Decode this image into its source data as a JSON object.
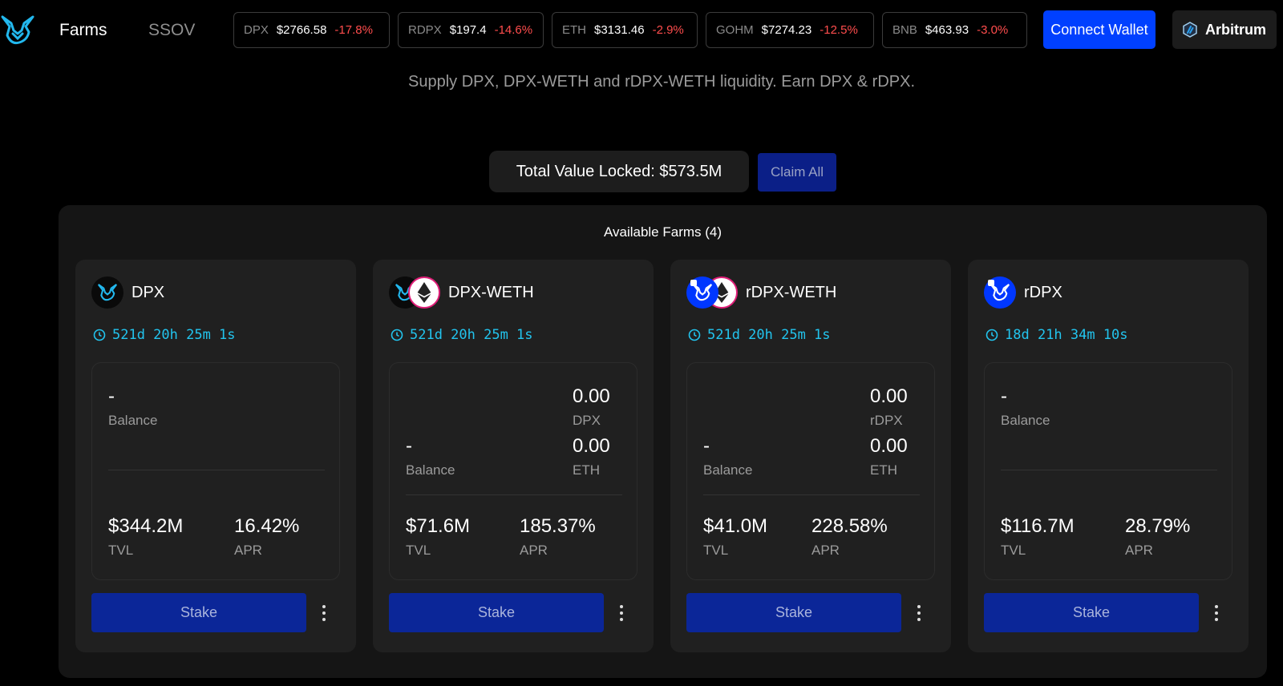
{
  "nav": {
    "farms": "Farms",
    "ssov": "SSOV"
  },
  "tickers": [
    {
      "symbol": "DPX",
      "price": "$2766.58",
      "change": "-17.8%"
    },
    {
      "symbol": "RDPX",
      "price": "$197.4",
      "change": "-14.6%"
    },
    {
      "symbol": "ETH",
      "price": "$3131.46",
      "change": "-2.9%"
    },
    {
      "symbol": "GOHM",
      "price": "$7274.23",
      "change": "-12.5%"
    },
    {
      "symbol": "BNB",
      "price": "$463.93",
      "change": "-3.0%"
    }
  ],
  "header": {
    "connect_label": "Connect Wallet",
    "network_label": "Arbitrum"
  },
  "subtitle": "Supply DPX, DPX-WETH and rDPX-WETH liquidity. Earn DPX & rDPX.",
  "tvl": {
    "label": "Total Value Locked: $573.5M",
    "claim_label": "Claim All"
  },
  "panel": {
    "title": "Available Farms (4)"
  },
  "farms": [
    {
      "name": "DPX",
      "icons": [
        "dpx"
      ],
      "timer": "521d 20h 25m 1s",
      "balance": "-",
      "balance_label": "Balance",
      "tvl": "$344.2M",
      "tvl_label": "TVL",
      "apr": "16.42%",
      "apr_label": "APR",
      "stake_label": "Stake"
    },
    {
      "name": "DPX-WETH",
      "icons": [
        "dpx",
        "eth"
      ],
      "timer": "521d 20h 25m 1s",
      "balance": "-",
      "balance_label": "Balance",
      "token1_amount": "0.00",
      "token1": "DPX",
      "token2_amount": "0.00",
      "token2": "ETH",
      "tvl": "$71.6M",
      "tvl_label": "TVL",
      "apr": "185.37%",
      "apr_label": "APR",
      "stake_label": "Stake"
    },
    {
      "name": "rDPX-WETH",
      "icons": [
        "rdpx",
        "eth"
      ],
      "timer": "521d 20h 25m 1s",
      "balance": "-",
      "balance_label": "Balance",
      "token1_amount": "0.00",
      "token1": "rDPX",
      "token2_amount": "0.00",
      "token2": "ETH",
      "tvl": "$41.0M",
      "tvl_label": "TVL",
      "apr": "228.58%",
      "apr_label": "APR",
      "stake_label": "Stake"
    },
    {
      "name": "rDPX",
      "icons": [
        "rdpx"
      ],
      "timer": "18d 21h 34m 10s",
      "balance": "-",
      "balance_label": "Balance",
      "tvl": "$116.7M",
      "tvl_label": "TVL",
      "apr": "28.79%",
      "apr_label": "APR",
      "stake_label": "Stake"
    }
  ],
  "colors": {
    "accent": "#0040ff",
    "timer": "#22c4ee",
    "negative": "#ff4d4d",
    "stake": "#0b2698"
  }
}
